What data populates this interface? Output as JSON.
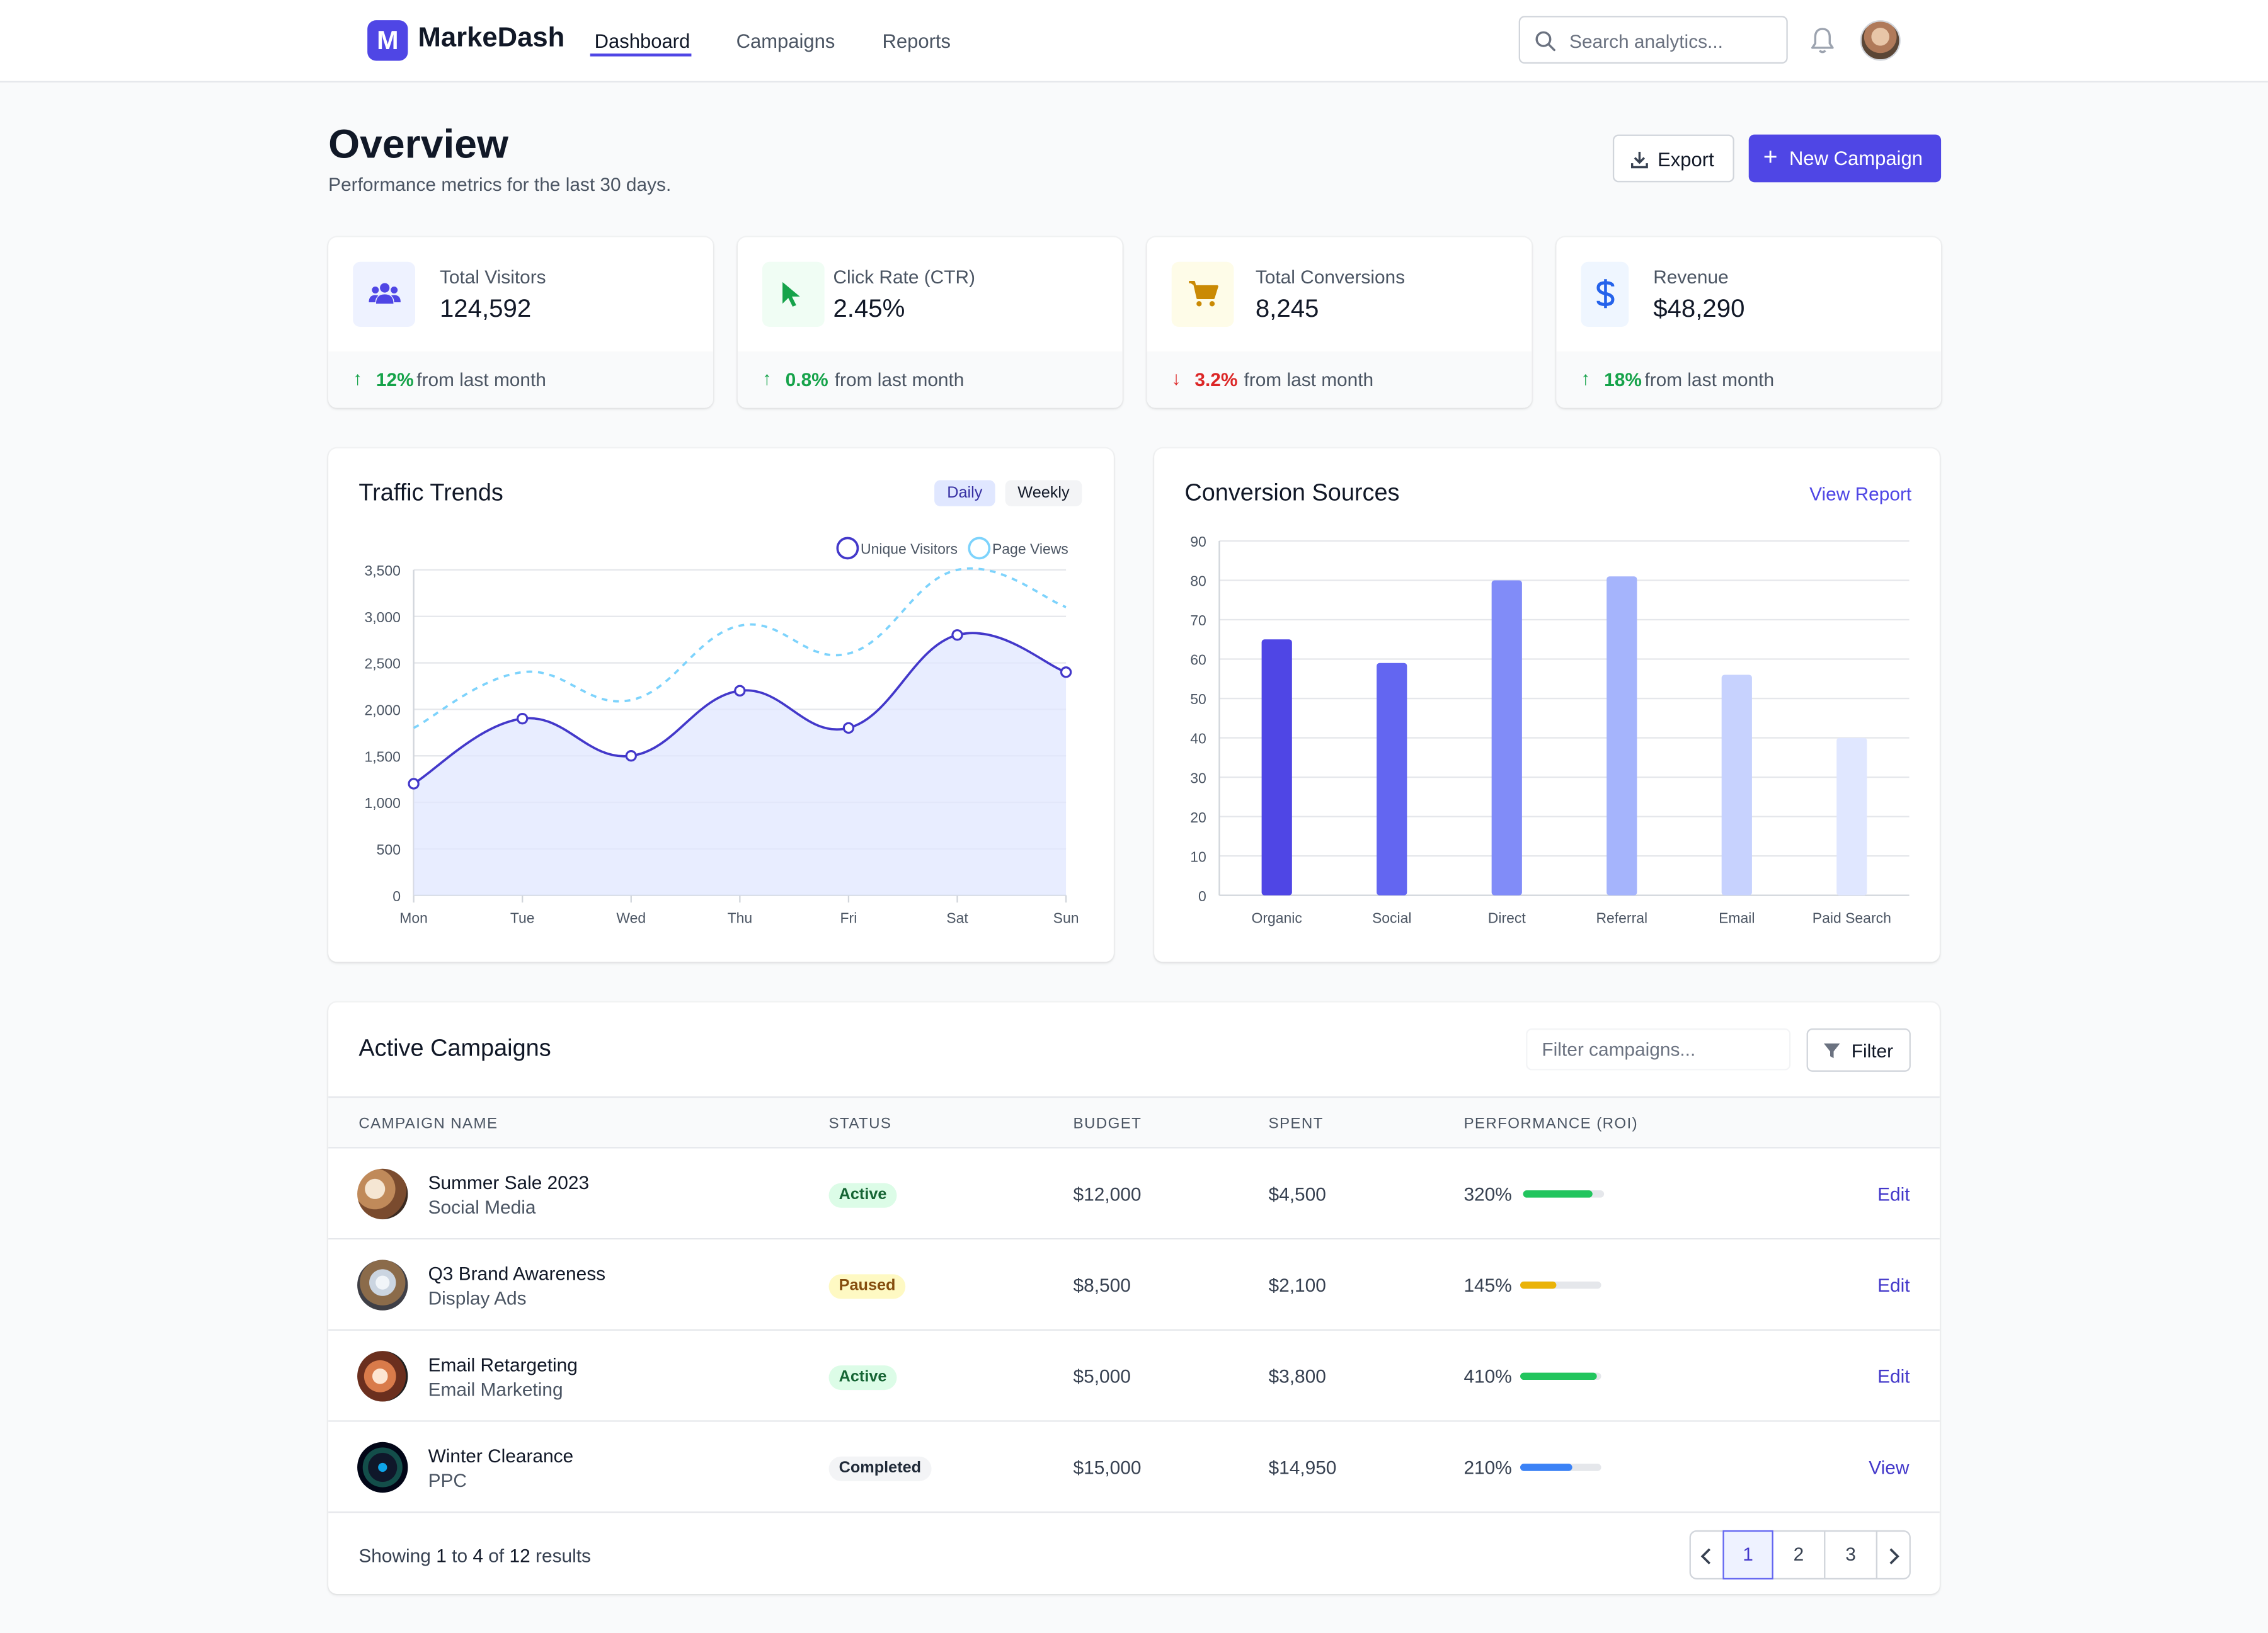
{
  "header": {
    "logo_letter": "M",
    "brand": "MarkeDash",
    "nav": [
      "Dashboard",
      "Campaigns",
      "Reports"
    ],
    "search_placeholder": "Search analytics..."
  },
  "page": {
    "title": "Overview",
    "subtitle": "Performance metrics for the last 30 days.",
    "export_label": "Export",
    "new_campaign_label": "New Campaign"
  },
  "stats": [
    {
      "label": "Total Visitors",
      "value": "124,592",
      "change": "12%",
      "direction": "up",
      "suffix": "from last month",
      "icon": "users-icon",
      "color": "#4f46e5"
    },
    {
      "label": "Click Rate (CTR)",
      "value": "2.45%",
      "change": "0.8%",
      "direction": "up",
      "suffix": "from last month",
      "icon": "cursor-icon",
      "color": "#16a34a"
    },
    {
      "label": "Total Conversions",
      "value": "8,245",
      "change": "3.2%",
      "direction": "down",
      "suffix": "from last month",
      "icon": "cart-icon",
      "color": "#ca8a04"
    },
    {
      "label": "Revenue",
      "value": "$48,290",
      "change": "18%",
      "direction": "up",
      "suffix": "from last month",
      "icon": "dollar-icon",
      "color": "#2563eb"
    }
  ],
  "traffic": {
    "title": "Traffic Trends",
    "toggle": [
      "Daily",
      "Weekly"
    ],
    "selected": "Daily"
  },
  "conversions": {
    "title": "Conversion Sources",
    "link": "View Report"
  },
  "chart_data": [
    {
      "type": "line",
      "title": "Traffic Trends",
      "x": [
        "Mon",
        "Tue",
        "Wed",
        "Thu",
        "Fri",
        "Sat",
        "Sun"
      ],
      "ylim": [
        0,
        3500
      ],
      "yticks": [
        0,
        500,
        1000,
        1500,
        2000,
        2500,
        3000,
        3500
      ],
      "legend": "top-right",
      "grid": true,
      "series": [
        {
          "name": "Unique Visitors",
          "values": [
            1200,
            1900,
            1500,
            2200,
            1800,
            2800,
            2400
          ],
          "color": "#4338ca",
          "fill": "#e0e7ff"
        },
        {
          "name": "Page Views",
          "values": [
            1800,
            2400,
            2100,
            2900,
            2600,
            3500,
            3100
          ],
          "color": "#7dd3fc",
          "dashed": true
        }
      ]
    },
    {
      "type": "bar",
      "title": "Conversion Sources",
      "categories": [
        "Organic",
        "Social",
        "Direct",
        "Referral",
        "Email",
        "Paid Search"
      ],
      "values": [
        65,
        59,
        80,
        81,
        56,
        40
      ],
      "colors": [
        "#4f46e5",
        "#6366f1",
        "#818cf8",
        "#a5b4fc",
        "#c7d2fe",
        "#e0e7ff"
      ],
      "ylim": [
        0,
        90
      ],
      "yticks": [
        0,
        10,
        20,
        30,
        40,
        50,
        60,
        70,
        80,
        90
      ],
      "grid": true
    }
  ],
  "campaigns": {
    "title": "Active Campaigns",
    "filter_placeholder": "Filter campaigns...",
    "filter_label": "Filter",
    "columns": [
      "CAMPAIGN NAME",
      "STATUS",
      "BUDGET",
      "SPENT",
      "PERFORMANCE (ROI)"
    ],
    "rows": [
      {
        "name": "Summer Sale 2023",
        "channel": "Social Media",
        "status": "Active",
        "budget": "$12,000",
        "spent": "$4,500",
        "roi": "320%",
        "roi_level": 0.85,
        "bar_color": "#22c55e",
        "action": "Edit"
      },
      {
        "name": "Q3 Brand Awareness",
        "channel": "Display Ads",
        "status": "Paused",
        "budget": "$8,500",
        "spent": "$2,100",
        "roi": "145%",
        "roi_level": 0.45,
        "bar_color": "#eab308",
        "action": "Edit"
      },
      {
        "name": "Email Retargeting",
        "channel": "Email Marketing",
        "status": "Active",
        "budget": "$5,000",
        "spent": "$3,800",
        "roi": "410%",
        "roi_level": 0.95,
        "bar_color": "#22c55e",
        "action": "Edit"
      },
      {
        "name": "Winter Clearance",
        "channel": "PPC",
        "status": "Completed",
        "budget": "$15,000",
        "spent": "$14,950",
        "roi": "210%",
        "roi_level": 0.65,
        "bar_color": "#3b82f6",
        "action": "View"
      }
    ],
    "showing_prefix": "Showing",
    "showing_from": "1",
    "showing_to_word": "to",
    "showing_to": "4",
    "showing_of_word": "of",
    "showing_total": "12",
    "showing_suffix": "results",
    "pages": [
      "1",
      "2",
      "3"
    ],
    "current_page": "1"
  }
}
